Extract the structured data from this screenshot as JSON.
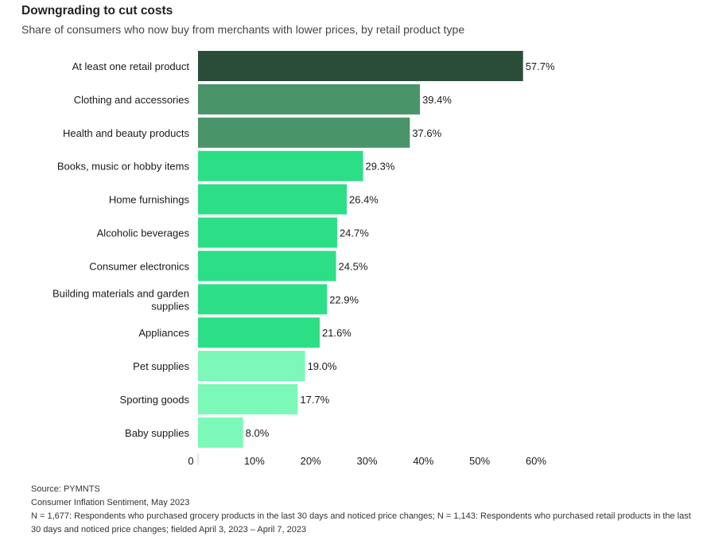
{
  "chart_data": {
    "type": "bar",
    "orientation": "horizontal",
    "title": "Downgrading to cut costs",
    "subtitle": "Share of consumers who now buy from merchants with lower prices, by retail product type",
    "categories": [
      "At least one retail product",
      "Clothing and accessories",
      "Health and beauty products",
      "Books, music or hobby items",
      "Home furnishings",
      "Alcoholic beverages",
      "Consumer electronics",
      "Building materials and garden supplies",
      "Appliances",
      "Pet supplies",
      "Sporting goods",
      "Baby supplies"
    ],
    "values": [
      57.7,
      39.4,
      37.6,
      29.3,
      26.4,
      24.7,
      24.5,
      22.9,
      21.6,
      19.0,
      17.7,
      8.0
    ],
    "value_labels": [
      "57.7%",
      "39.4%",
      "37.6%",
      "29.3%",
      "26.4%",
      "24.7%",
      "24.5%",
      "22.9%",
      "21.6%",
      "19.0%",
      "17.7%",
      "8.0%"
    ],
    "bar_colors": [
      "#2a4d3a",
      "#4a946a",
      "#4a946a",
      "#2cde86",
      "#2cde86",
      "#2cde86",
      "#2cde86",
      "#2cde86",
      "#2cde86",
      "#7cf8b8",
      "#7cf8b8",
      "#7cf8b8"
    ],
    "xlim": [
      0,
      60
    ],
    "xticks": [
      0,
      10,
      20,
      30,
      40,
      50,
      60
    ],
    "xtick_labels": [
      "0",
      "10%",
      "20%",
      "30%",
      "40%",
      "50%",
      "60%"
    ],
    "xlabel": "",
    "ylabel": "",
    "grid": false,
    "legend": "none"
  },
  "footer": {
    "source": "Source: PYMNTS",
    "report": "Consumer Inflation Sentiment, May 2023",
    "note": "N = 1,677: Respondents who purchased grocery products in the last 30 days and noticed price changes; N = 1,143: Respondents who purchased retail products in the last 30 days and noticed price changes; fielded April 3, 2023 – April 7, 2023"
  }
}
